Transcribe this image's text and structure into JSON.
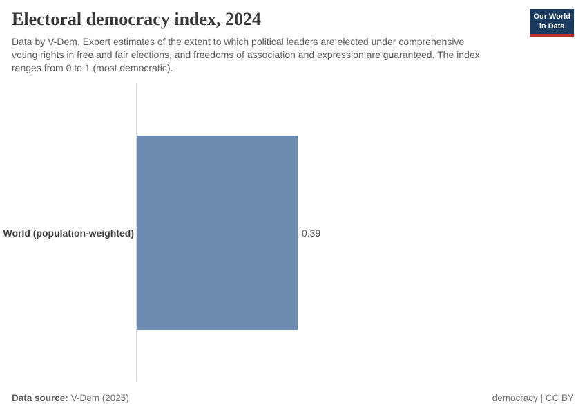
{
  "header": {
    "title": "Electoral democracy index, 2024",
    "subtitle_lines": [
      "Data by V-Dem. Expert estimates of the extent to which political leaders are elected under comprehensive",
      "voting rights in free and fair elections, and freedoms of association and expression are guaranteed. The index",
      "ranges from 0 to 1 (most democratic)."
    ],
    "logo": {
      "line1": "Our World",
      "line2": "in Data",
      "bg_color": "#1a3a5f",
      "accent_color": "#bb3025",
      "text_color": "#ffffff"
    }
  },
  "chart_data": {
    "type": "bar",
    "orientation": "horizontal",
    "title": "Electoral democracy index, 2024",
    "categories": [
      "World (population-weighted)"
    ],
    "values": [
      0.39
    ],
    "value_labels": [
      "0.39"
    ],
    "xlim": [
      0,
      1
    ],
    "xlabel": "",
    "ylabel": "",
    "grid": false,
    "legend": false,
    "bar_color": "#6e8bb2",
    "axis_color": "#dcdcdc"
  },
  "footer": {
    "datasource_label": "Data source:",
    "datasource_value": "V-Dem (2025)",
    "link_label": "democracy",
    "separator": " | ",
    "license_label": "CC BY"
  }
}
